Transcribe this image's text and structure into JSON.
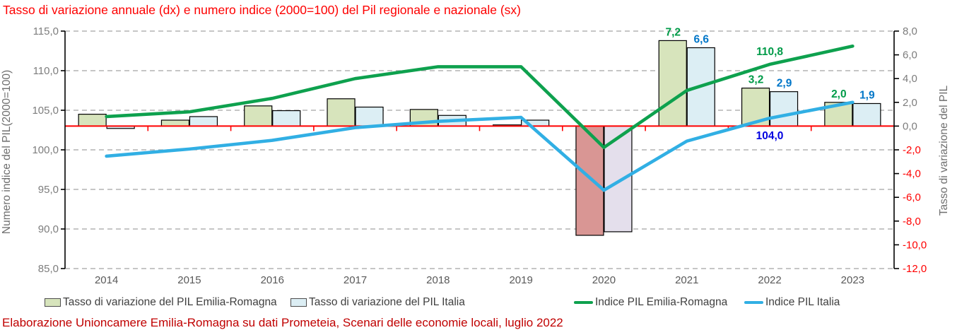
{
  "title": {
    "text": "Tasso di variazione annuale (dx) e numero indice (2000=100) del Pil regionale e nazionale (sx)"
  },
  "footer": {
    "text": "Elaborazione Unioncamere Emilia-Romagna su dati Prometeia, Scenari delle economie locali, luglio 2022"
  },
  "chart_data": {
    "type": "combo-bar-line",
    "categories": [
      "2014",
      "2015",
      "2016",
      "2017",
      "2018",
      "2019",
      "2020",
      "2021",
      "2022",
      "2023"
    ],
    "series": [
      {
        "name": "Tasso di variazione del PIL Emilia-Romagna",
        "type": "bar",
        "axis": "right",
        "color": "#D7E4BC",
        "border": "#000000",
        "value_colors": {
          "6": "#D99694"
        },
        "label_color": "#009B48",
        "values": [
          1.0,
          0.5,
          1.7,
          2.3,
          1.4,
          0.1,
          -9.2,
          7.2,
          3.2,
          2.0
        ]
      },
      {
        "name": "Tasso di variazione del PIL Italia",
        "type": "bar",
        "axis": "right",
        "color": "#DCEEF4",
        "border": "#000000",
        "value_colors": {
          "6": "#E4DFEC"
        },
        "label_color": "#0076C8",
        "values": [
          -0.2,
          0.8,
          1.3,
          1.6,
          0.9,
          0.5,
          -8.9,
          6.6,
          2.9,
          1.9
        ]
      },
      {
        "name": "Indice PIL Emilia-Romagna",
        "type": "line",
        "axis": "left",
        "color": "#0EA14E",
        "label_color": "#009B48",
        "values": [
          104.2,
          104.8,
          106.5,
          109.0,
          110.5,
          110.5,
          100.3,
          107.5,
          110.8,
          113.1
        ]
      },
      {
        "name": "Indice PIL Italia",
        "type": "line",
        "axis": "left",
        "color": "#31AFE4",
        "label_color": "#0000E0",
        "values": [
          99.2,
          100.1,
          101.2,
          102.8,
          103.6,
          104.1,
          94.9,
          101.1,
          104.0,
          106.0
        ]
      }
    ],
    "data_labels": [
      {
        "series": 0,
        "index": 7,
        "text": "7,2"
      },
      {
        "series": 1,
        "index": 7,
        "text": "6,6"
      },
      {
        "series": 0,
        "index": 8,
        "text": "3,2"
      },
      {
        "series": 1,
        "index": 8,
        "text": "2,9"
      },
      {
        "series": 2,
        "index": 8,
        "text": "110,8",
        "dy": -13
      },
      {
        "series": 3,
        "index": 8,
        "text": "104,0",
        "dy": 30
      },
      {
        "series": 0,
        "index": 9,
        "text": "2,0"
      },
      {
        "series": 1,
        "index": 9,
        "text": "1,9"
      }
    ],
    "left_axis": {
      "title": "Numero indice del PIL(2000=100)",
      "min": 85,
      "max": 115,
      "step": 5,
      "ticks": [
        {
          "v": 115,
          "label": "115,0"
        },
        {
          "v": 110,
          "label": "110,0"
        },
        {
          "v": 105,
          "label": "105,0"
        },
        {
          "v": 100,
          "label": "100,0"
        },
        {
          "v": 95,
          "label": "95,0"
        },
        {
          "v": 90,
          "label": "90,0"
        },
        {
          "v": 85,
          "label": "85,0"
        }
      ]
    },
    "right_axis": {
      "title": "Tasso di variazione del PIL",
      "min": -12,
      "max": 8,
      "step": 2,
      "zero_line_color": "#FF0000",
      "negative_label_color": "#FF0000",
      "ticks": [
        {
          "v": 8,
          "label": "8,0"
        },
        {
          "v": 6,
          "label": "6,0"
        },
        {
          "v": 4,
          "label": "4,0"
        },
        {
          "v": 2,
          "label": "2,0"
        },
        {
          "v": 0,
          "label": "0,0"
        },
        {
          "v": -2,
          "label": "-2,0"
        },
        {
          "v": -4,
          "label": "-4,0"
        },
        {
          "v": -6,
          "label": "-6,0"
        },
        {
          "v": -8,
          "label": "-8,0"
        },
        {
          "v": -10,
          "label": "-10,0"
        },
        {
          "v": -12,
          "label": "-12,0"
        }
      ]
    },
    "grid": {
      "color": "#A3A3A3",
      "dash": "7 5"
    },
    "tick_label_color": "#7D7D7D",
    "axis_title_color": "#6E6E6E",
    "year_label_color": "#595959"
  },
  "legend": {
    "items": [
      {
        "label": "Tasso di variazione del PIL Emilia-Romagna",
        "marker": "bar",
        "color": "#D7E4BC"
      },
      {
        "label": "Tasso di variazione del PIL Italia",
        "marker": "bar",
        "color": "#DCEEF4"
      },
      {
        "label": "Indice PIL Emilia-Romagna",
        "marker": "line",
        "color": "#0EA14E"
      },
      {
        "label": "Indice PIL Italia",
        "marker": "line",
        "color": "#31AFE4"
      }
    ]
  }
}
